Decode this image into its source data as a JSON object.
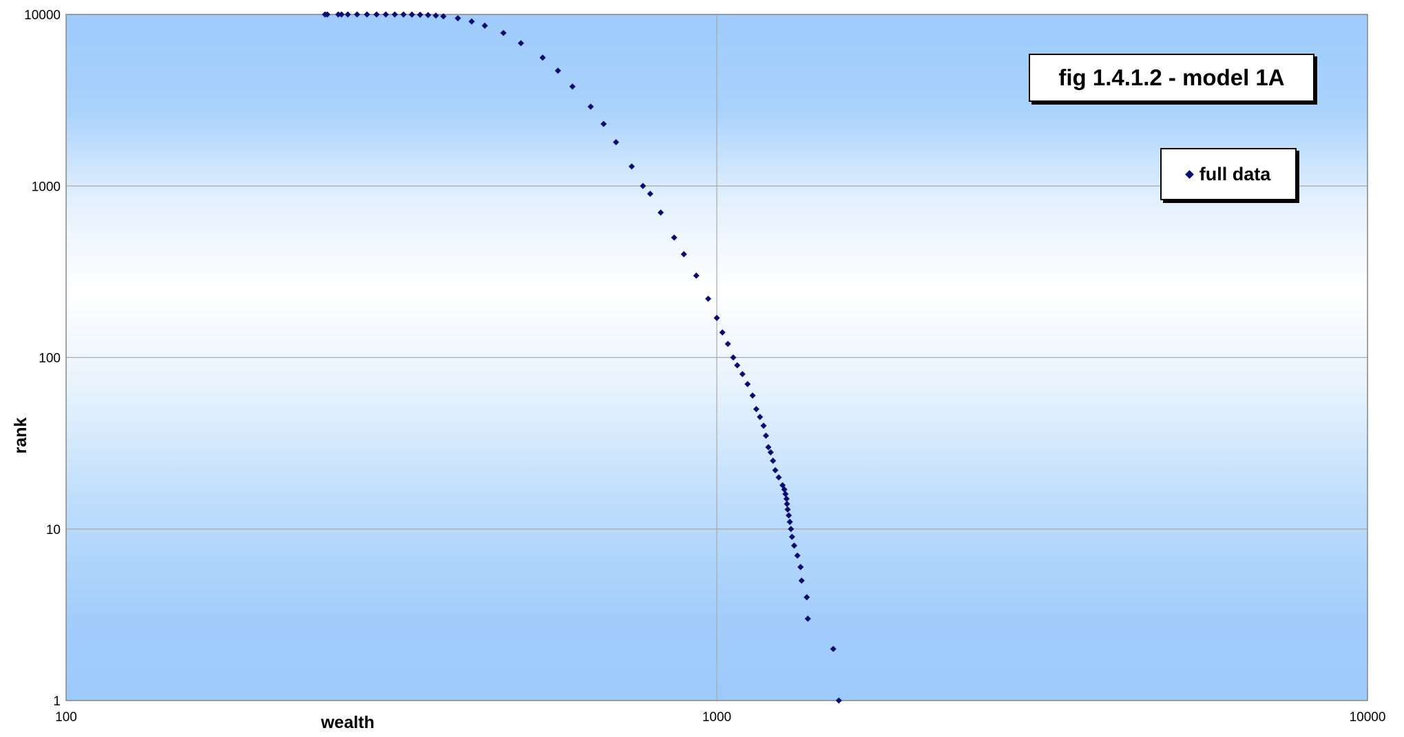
{
  "chart_data": {
    "type": "scatter",
    "title": "fig 1.4.1.2 - model 1A",
    "xlabel": "wealth",
    "ylabel": "rank",
    "x_scale": "log",
    "y_scale": "log",
    "xlim": [
      100,
      10000
    ],
    "ylim": [
      1,
      10000
    ],
    "x_ticks": [
      "100",
      "1000",
      "10000"
    ],
    "y_ticks": [
      "1",
      "10",
      "100",
      "1000",
      "10000"
    ],
    "grid": true,
    "legend_position": "top-right",
    "marker_color": "#0b0b6e",
    "series": [
      {
        "name": "full data",
        "points": [
          [
            1540,
            1
          ],
          [
            1510,
            2
          ],
          [
            1380,
            3
          ],
          [
            1375,
            4
          ],
          [
            1350,
            5
          ],
          [
            1345,
            6
          ],
          [
            1330,
            7
          ],
          [
            1315,
            8
          ],
          [
            1305,
            9
          ],
          [
            1300,
            10
          ],
          [
            1295,
            11
          ],
          [
            1290,
            12
          ],
          [
            1285,
            13
          ],
          [
            1282,
            14
          ],
          [
            1280,
            15
          ],
          [
            1275,
            16
          ],
          [
            1270,
            17
          ],
          [
            1262,
            18
          ],
          [
            1245,
            20
          ],
          [
            1230,
            22
          ],
          [
            1220,
            25
          ],
          [
            1210,
            28
          ],
          [
            1200,
            30
          ],
          [
            1190,
            35
          ],
          [
            1180,
            40
          ],
          [
            1165,
            45
          ],
          [
            1150,
            50
          ],
          [
            1135,
            60
          ],
          [
            1115,
            70
          ],
          [
            1095,
            80
          ],
          [
            1075,
            90
          ],
          [
            1060,
            100
          ],
          [
            1040,
            120
          ],
          [
            1020,
            140
          ],
          [
            1000,
            170
          ],
          [
            970,
            220
          ],
          [
            930,
            300
          ],
          [
            890,
            400
          ],
          [
            860,
            500
          ],
          [
            820,
            700
          ],
          [
            790,
            900
          ],
          [
            770,
            1000
          ],
          [
            740,
            1300
          ],
          [
            700,
            1800
          ],
          [
            670,
            2300
          ],
          [
            640,
            2900
          ],
          [
            600,
            3800
          ],
          [
            570,
            4700
          ],
          [
            540,
            5600
          ],
          [
            500,
            6800
          ],
          [
            470,
            7800
          ],
          [
            440,
            8600
          ],
          [
            420,
            9100
          ],
          [
            400,
            9500
          ],
          [
            380,
            9750
          ],
          [
            370,
            9850
          ],
          [
            360,
            9920
          ],
          [
            350,
            9960
          ],
          [
            340,
            9985
          ],
          [
            330,
            9995
          ],
          [
            320,
            9998
          ],
          [
            310,
            9999
          ],
          [
            300,
            10000
          ],
          [
            290,
            10000
          ],
          [
            280,
            10000
          ],
          [
            271,
            10000
          ],
          [
            265,
            10000
          ],
          [
            262,
            10000
          ],
          [
            252,
            10000
          ],
          [
            250,
            10000
          ]
        ]
      }
    ]
  }
}
